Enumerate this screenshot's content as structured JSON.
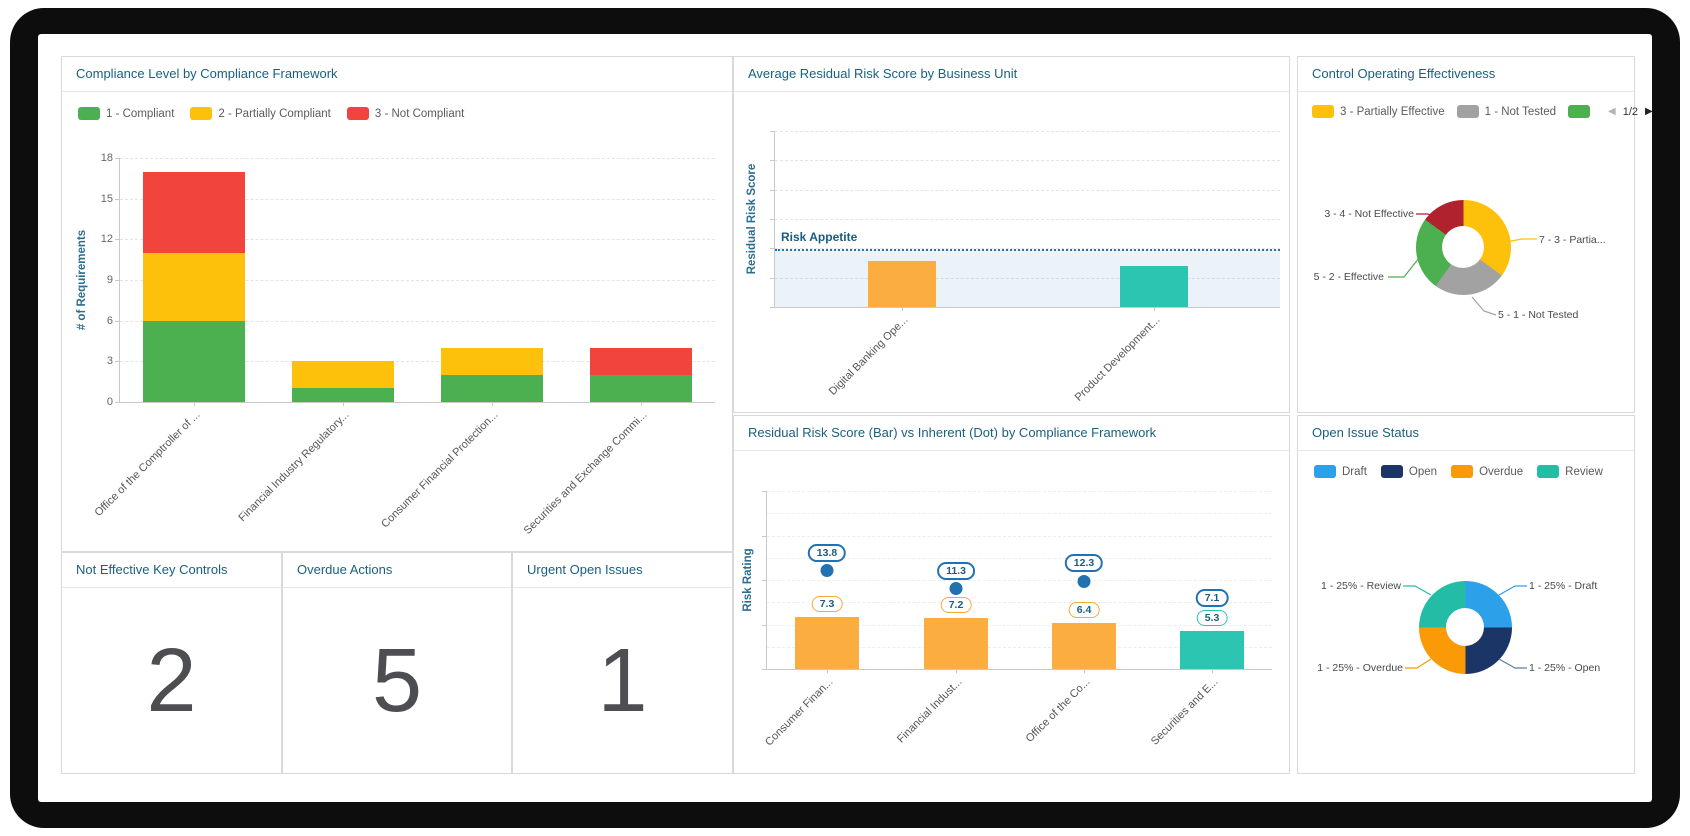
{
  "dashboard": {
    "panels": {
      "compliance": {
        "title": "Compliance Level by Compliance Framework",
        "chart_data": {
          "type": "bar",
          "stacked": true,
          "categories": [
            "Office of the Comptroller of ...",
            "Financial Industry Regulatory...",
            "Consumer Financial Protection...",
            "Securities and Exchange Commi..."
          ],
          "series": [
            {
              "name": "1 - Compliant",
              "color": "#4caf50",
              "values": [
                6,
                1,
                2,
                2
              ]
            },
            {
              "name": "2 - Partially Compliant",
              "color": "#fdc10b",
              "values": [
                5,
                2,
                2,
                0
              ]
            },
            {
              "name": "3 - Not Compliant",
              "color": "#f1443c",
              "values": [
                6,
                0,
                0,
                2
              ]
            }
          ],
          "ylabel": "# of Requirements",
          "yticks": [
            0,
            3,
            6,
            9,
            12,
            15,
            18
          ],
          "ylim": [
            0,
            18
          ],
          "legend_position": "top",
          "grid": "horizontal-dashed"
        }
      },
      "avg_residual_risk": {
        "title": "Average Residual Risk Score by Business Unit",
        "chart_data": {
          "type": "bar",
          "categories": [
            "Digital Banking Ope...",
            "Product Development..."
          ],
          "values": [
            6.5,
            5.8
          ],
          "values_estimated": true,
          "bar_colors": [
            "#fbad40",
            "#2bc5b2"
          ],
          "ylabel": "Residual Risk Score",
          "ylim": [
            0,
            25
          ],
          "y_tick_labels_hidden": true,
          "reference_line": {
            "label": "Risk Appetite",
            "value": 8.1,
            "color": "#2272b2",
            "style": "dotted",
            "shaded_below": true
          }
        }
      },
      "control_effectiveness": {
        "title": "Control Operating Effectiveness",
        "legend": [
          {
            "label": "3 - Partially Effective",
            "color": "#fdc10b"
          },
          {
            "label": "1 - Not Tested",
            "color": "#a2a2a2"
          },
          {
            "label": "",
            "color": "#4caf50",
            "truncated": true
          }
        ],
        "pagination": {
          "page": "1/2",
          "prev_icon": "◀",
          "next_icon": "▶"
        },
        "chart_data": {
          "type": "pie",
          "donut": true,
          "slices": [
            {
              "label": "3 - Partially Effective",
              "value": 7,
              "color": "#fdc10b",
              "callout": "7 - 3 - Partia..."
            },
            {
              "label": "1 - Not Tested",
              "value": 5,
              "color": "#a2a2a2",
              "callout": "5 - 1 - Not Tested"
            },
            {
              "label": "2 - Effective",
              "value": 5,
              "color": "#4caf50",
              "callout": "5 - 2 - Effective"
            },
            {
              "label": "4 - Not Effective",
              "value": 3,
              "color": "#b0222d",
              "callout": "3 - 4 - Not Effective"
            }
          ]
        }
      },
      "kpis": [
        {
          "title": "Not Effective Key Controls",
          "value": "2"
        },
        {
          "title": "Overdue Actions",
          "value": "5"
        },
        {
          "title": "Urgent Open Issues",
          "value": "1"
        }
      ],
      "residual_vs_inherent": {
        "title": "Residual Risk Score (Bar) vs Inherent (Dot) by Compliance Framework",
        "chart_data": {
          "type": "bar+scatter",
          "categories": [
            "Consumer Finan...",
            "Financial Indust...",
            "Office of the Co...",
            "Securities and E..."
          ],
          "series": [
            {
              "name": "Residual Risk Score (Bar)",
              "values": [
                7.3,
                7.2,
                6.4,
                5.3
              ],
              "colors": [
                "#fbad40",
                "#fbad40",
                "#fbad40",
                "#2bc5b2"
              ]
            },
            {
              "name": "Inherent (Dot)",
              "values": [
                13.8,
                11.3,
                12.3,
                7.1
              ],
              "color": "#2272b2"
            }
          ],
          "ylabel": "Risk Rating",
          "y_tick_labels_hidden": true,
          "ylim_estimated": [
            0,
            25
          ]
        }
      },
      "open_issue_status": {
        "title": "Open Issue Status",
        "legend": [
          {
            "label": "Draft",
            "color": "#2da0ea"
          },
          {
            "label": "Open",
            "color": "#1a3566"
          },
          {
            "label": "Overdue",
            "color": "#fb9a07"
          },
          {
            "label": "Review",
            "color": "#23bda5"
          }
        ],
        "chart_data": {
          "type": "pie",
          "donut": true,
          "slices": [
            {
              "label": "Draft",
              "value": 1,
              "percent": "25%",
              "color": "#2da0ea",
              "callout": "1 - 25% - Draft"
            },
            {
              "label": "Open",
              "value": 1,
              "percent": "25%",
              "color": "#1a3566",
              "callout": "1 - 25% - Open"
            },
            {
              "label": "Overdue",
              "value": 1,
              "percent": "25%",
              "color": "#fb9a07",
              "callout": "1 - 25% - Overdue"
            },
            {
              "label": "Review",
              "value": 1,
              "percent": "25%",
              "color": "#23bda5",
              "callout": "1 - 25% - Review"
            }
          ]
        }
      }
    }
  }
}
